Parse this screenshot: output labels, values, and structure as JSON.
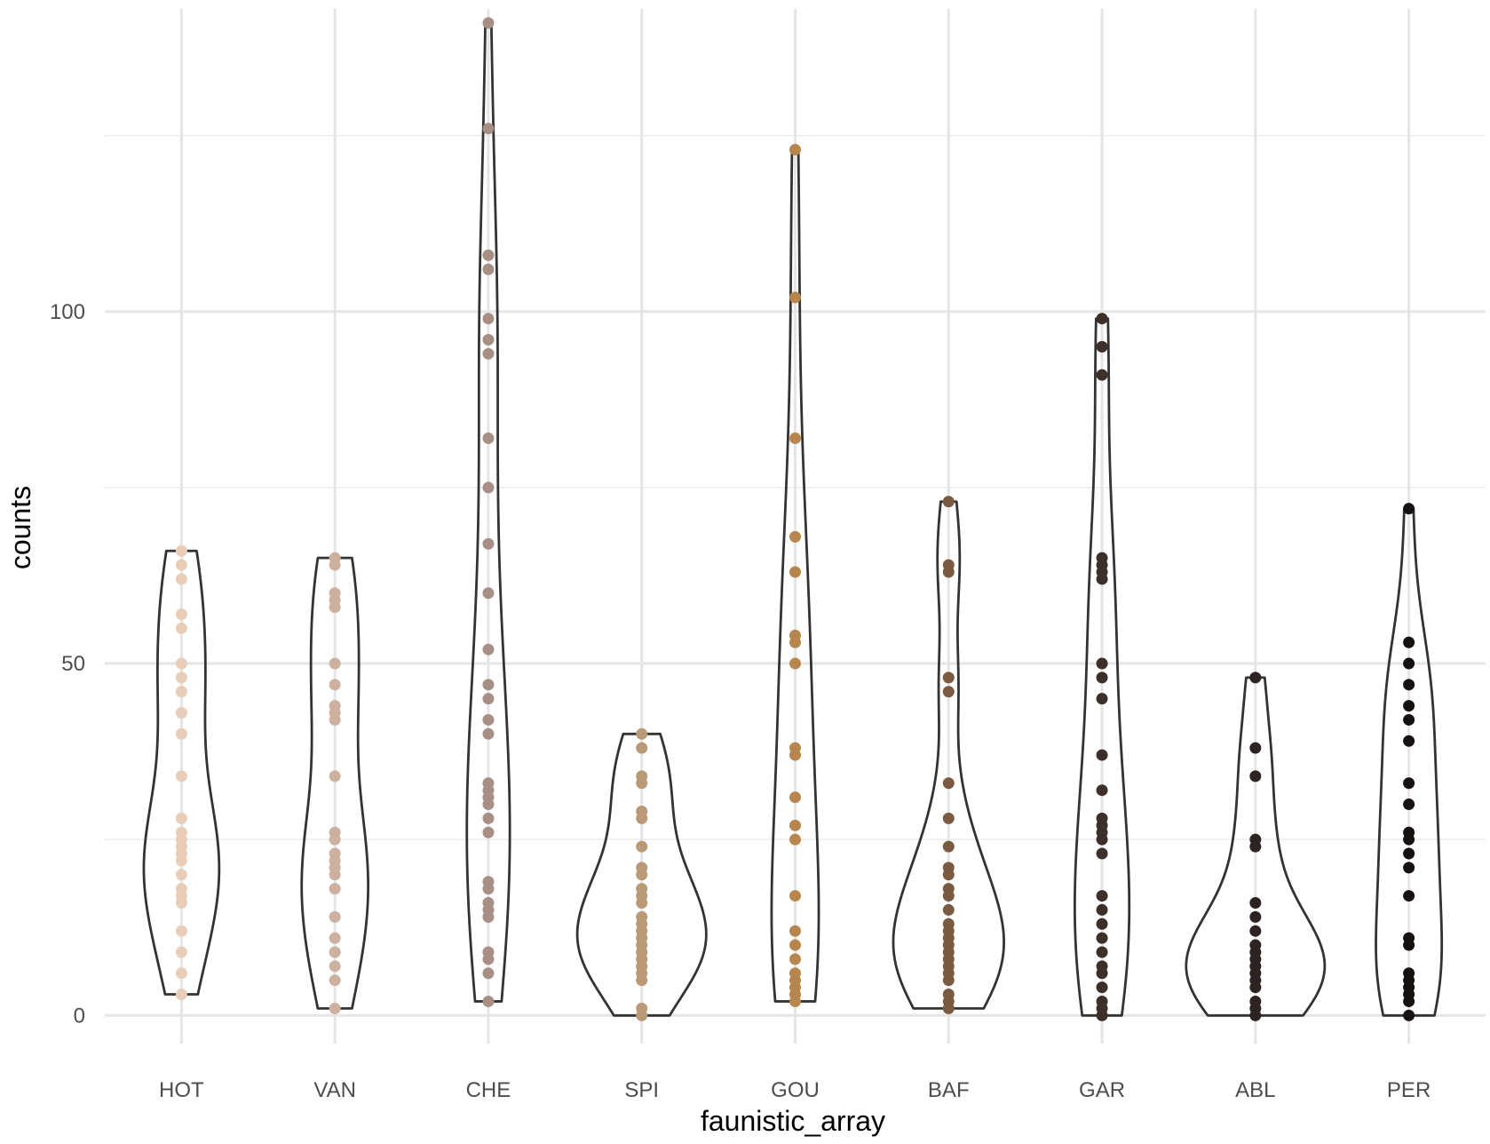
{
  "chart_data": {
    "type": "violin",
    "title": "",
    "xlabel": "faunistic_array",
    "ylabel": "counts",
    "categories": [
      "HOT",
      "VAN",
      "CHE",
      "SPI",
      "GOU",
      "BAF",
      "GAR",
      "ABL",
      "PER"
    ],
    "ylim": [
      -4,
      143
    ],
    "y_ticks": [
      0,
      50,
      100
    ],
    "grid": true,
    "legend": "none",
    "colors": [
      "#e8cdb8",
      "#cdb09f",
      "#a88f86",
      "#ba9a76",
      "#b8864d",
      "#7a5b42",
      "#3d2f2a",
      "#2c2422",
      "#161211"
    ],
    "outline_color": "#333333",
    "series": [
      {
        "category": "HOT",
        "values": [
          3,
          6,
          9,
          12,
          16,
          17,
          18,
          20,
          22,
          23,
          24,
          25,
          26,
          28,
          34,
          40,
          43,
          46,
          48,
          50,
          55,
          57,
          62,
          64,
          66
        ]
      },
      {
        "category": "VAN",
        "values": [
          1,
          5,
          7,
          9,
          11,
          14,
          18,
          20,
          21,
          22,
          23,
          25,
          26,
          34,
          42,
          43,
          44,
          47,
          50,
          58,
          59,
          60,
          64,
          65
        ]
      },
      {
        "category": "CHE",
        "values": [
          2,
          6,
          8,
          9,
          14,
          15,
          16,
          18,
          19,
          26,
          28,
          30,
          31,
          32,
          33,
          40,
          42,
          45,
          47,
          52,
          60,
          67,
          75,
          82,
          94,
          96,
          99,
          106,
          108,
          126,
          141
        ]
      },
      {
        "category": "SPI",
        "values": [
          0,
          1,
          5,
          6,
          7,
          8,
          9,
          10,
          11,
          12,
          13,
          14,
          16,
          17,
          18,
          20,
          21,
          24,
          28,
          29,
          33,
          34,
          38,
          40
        ]
      },
      {
        "category": "GOU",
        "values": [
          2,
          3,
          4,
          5,
          6,
          8,
          10,
          12,
          17,
          25,
          27,
          31,
          37,
          38,
          50,
          53,
          54,
          63,
          68,
          82,
          102,
          123
        ]
      },
      {
        "category": "BAF",
        "values": [
          1,
          2,
          3,
          5,
          6,
          7,
          8,
          9,
          10,
          11,
          12,
          13,
          15,
          17,
          18,
          20,
          21,
          24,
          28,
          33,
          46,
          48,
          63,
          64,
          73
        ]
      },
      {
        "category": "GAR",
        "values": [
          0,
          1,
          2,
          4,
          6,
          7,
          9,
          11,
          13,
          15,
          17,
          23,
          25,
          26,
          27,
          28,
          32,
          37,
          45,
          48,
          50,
          62,
          63,
          64,
          65,
          91,
          95,
          99
        ]
      },
      {
        "category": "ABL",
        "values": [
          0,
          1,
          2,
          4,
          5,
          6,
          7,
          8,
          9,
          10,
          12,
          14,
          16,
          24,
          25,
          34,
          38,
          48
        ]
      },
      {
        "category": "PER",
        "values": [
          0,
          2,
          3,
          4,
          5,
          6,
          10,
          11,
          17,
          21,
          23,
          25,
          26,
          30,
          33,
          39,
          42,
          44,
          47,
          50,
          53,
          72
        ]
      }
    ]
  }
}
